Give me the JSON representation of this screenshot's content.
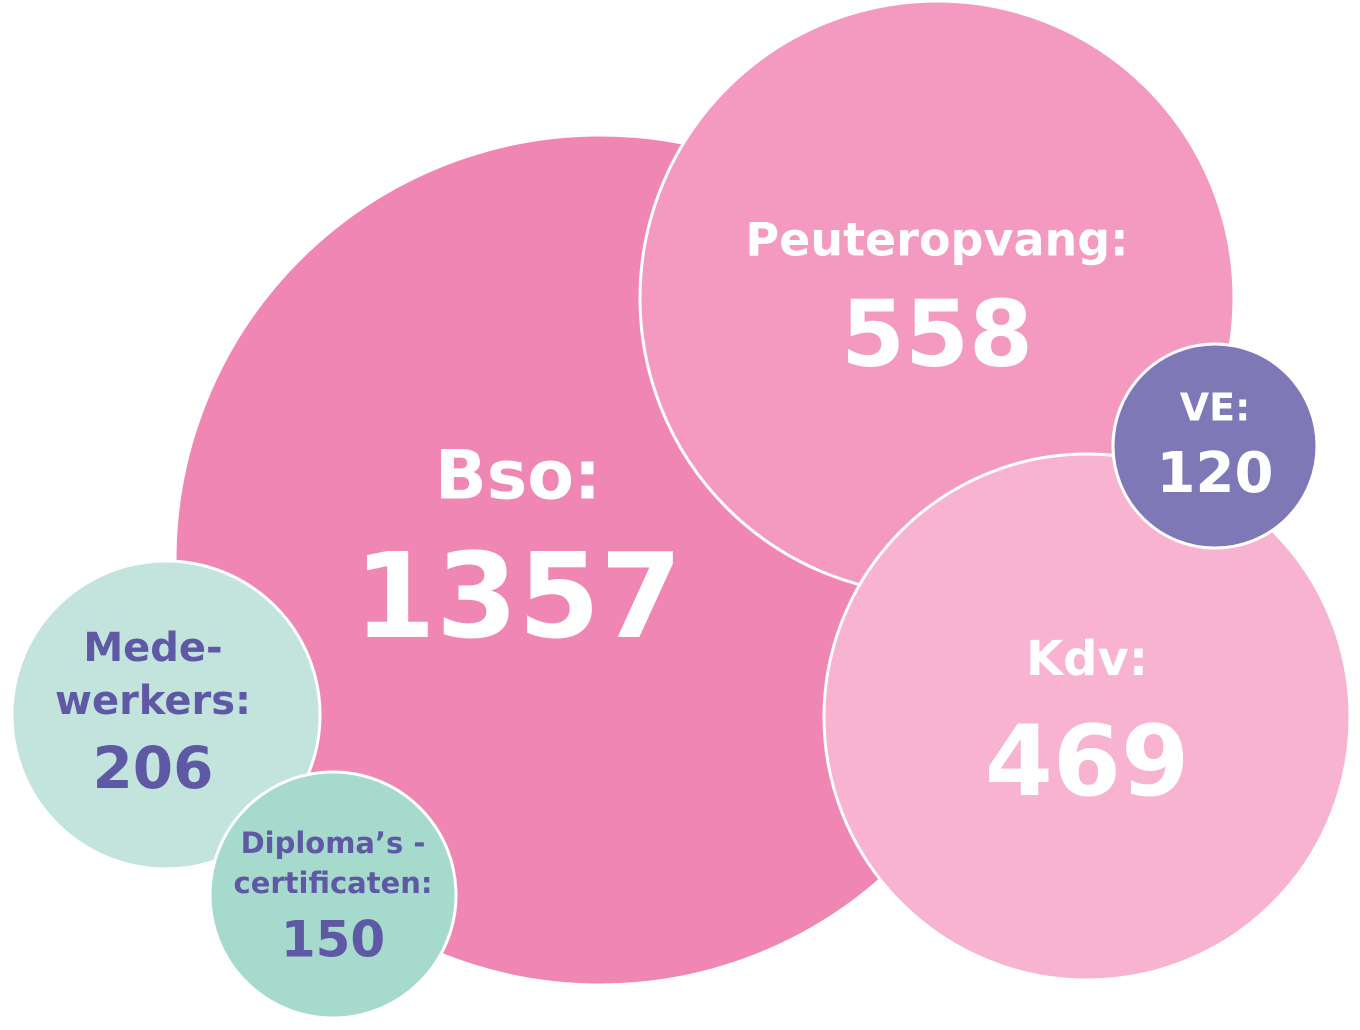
{
  "bubbles": [
    {
      "label": [
        "Bso:"
      ],
      "value": "1357"
    },
    {
      "label": [
        "Peuteropvang:"
      ],
      "value": "558"
    },
    {
      "label": [
        "Kdv:"
      ],
      "value": "469"
    },
    {
      "label": [
        "VE:"
      ],
      "value": "120"
    },
    {
      "label": [
        "Mede-",
        "werkers:"
      ],
      "value": "206"
    },
    {
      "label": [
        "Diploma’s -",
        "certificaten:"
      ],
      "value": "150"
    }
  ]
}
